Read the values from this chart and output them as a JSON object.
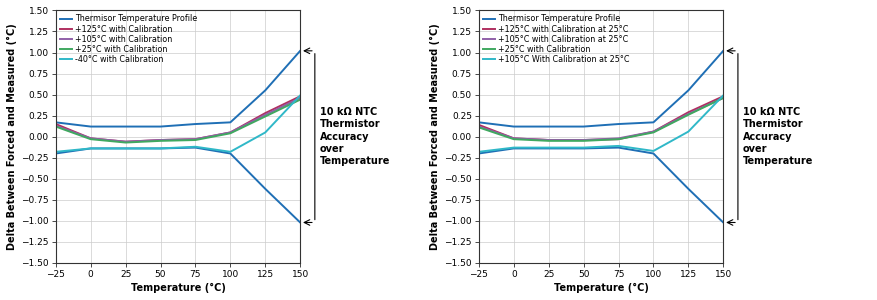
{
  "left_chart": {
    "xlabel": "Temperature (°C)",
    "ylabel": "Delta Between Forced and Measured (°C)",
    "xlim": [
      -25,
      150
    ],
    "ylim": [
      -1.5,
      1.5
    ],
    "xticks": [
      -25,
      0,
      25,
      50,
      75,
      100,
      125,
      150
    ],
    "yticks": [
      -1.5,
      -1.25,
      -1.0,
      -0.75,
      -0.5,
      -0.25,
      0.0,
      0.25,
      0.5,
      0.75,
      1.0,
      1.25,
      1.5
    ],
    "annotation": "10 kΩ NTC\nThermistor\nAccuracy\nover\nTemperature",
    "series": [
      {
        "label": "Thermisor Temperature Profile",
        "color": "#1f6fb5",
        "x": [
          -25,
          0,
          25,
          50,
          75,
          100,
          125,
          150
        ],
        "y_upper": [
          0.17,
          0.12,
          0.12,
          0.12,
          0.15,
          0.17,
          0.55,
          1.02
        ],
        "y_lower": [
          -0.2,
          -0.14,
          -0.14,
          -0.14,
          -0.13,
          -0.2,
          -0.62,
          -1.02
        ]
      },
      {
        "label": "+125°C with Calibration",
        "color": "#b03060",
        "x": [
          -25,
          0,
          25,
          50,
          75,
          100,
          125,
          150
        ],
        "y": [
          0.15,
          -0.02,
          -0.06,
          -0.04,
          -0.03,
          0.05,
          0.28,
          0.48
        ]
      },
      {
        "label": "+105°C with Calibration",
        "color": "#9060a8",
        "x": [
          -25,
          0,
          25,
          50,
          75,
          100,
          125,
          150
        ],
        "y": [
          0.13,
          -0.02,
          -0.06,
          -0.04,
          -0.03,
          0.05,
          0.26,
          0.46
        ]
      },
      {
        "label": "+25°C with Calibration",
        "color": "#40a860",
        "x": [
          -25,
          0,
          25,
          50,
          75,
          100,
          125,
          150
        ],
        "y": [
          0.12,
          -0.03,
          -0.07,
          -0.05,
          -0.04,
          0.04,
          0.24,
          0.44
        ]
      },
      {
        "label": "-40°C with Calibration",
        "color": "#30b8c8",
        "x": [
          -25,
          0,
          25,
          50,
          75,
          100,
          125,
          150
        ],
        "y": [
          -0.18,
          -0.14,
          -0.14,
          -0.14,
          -0.12,
          -0.18,
          0.05,
          0.49
        ]
      }
    ]
  },
  "right_chart": {
    "xlabel": "Temperature (°C)",
    "ylabel": "Delta Between Forced and Measured (°C)",
    "xlim": [
      -25,
      150
    ],
    "ylim": [
      -1.5,
      1.5
    ],
    "xticks": [
      -25,
      0,
      25,
      50,
      75,
      100,
      125,
      150
    ],
    "yticks": [
      -1.5,
      -1.25,
      -1.0,
      -0.75,
      -0.5,
      -0.25,
      0.0,
      0.25,
      0.5,
      0.75,
      1.0,
      1.25,
      1.5
    ],
    "annotation": "10 kΩ NTC\nThermistor\nAccuracy\nover\nTemperature",
    "series": [
      {
        "label": "Thermisor Temperature Profile",
        "color": "#1f6fb5",
        "x": [
          -25,
          0,
          25,
          50,
          75,
          100,
          125,
          150
        ],
        "y_upper": [
          0.17,
          0.12,
          0.12,
          0.12,
          0.15,
          0.17,
          0.55,
          1.02
        ],
        "y_lower": [
          -0.2,
          -0.14,
          -0.14,
          -0.14,
          -0.13,
          -0.2,
          -0.62,
          -1.02
        ]
      },
      {
        "label": "+125°C with Calibration at 25°C",
        "color": "#b03060",
        "x": [
          -25,
          0,
          25,
          50,
          75,
          100,
          125,
          150
        ],
        "y": [
          0.14,
          -0.02,
          -0.04,
          -0.04,
          -0.03,
          0.06,
          0.29,
          0.48
        ]
      },
      {
        "label": "+105°C with Calibration at 25°C",
        "color": "#9060a8",
        "x": [
          -25,
          0,
          25,
          50,
          75,
          100,
          125,
          150
        ],
        "y": [
          0.12,
          -0.02,
          -0.04,
          -0.04,
          -0.02,
          0.06,
          0.27,
          0.46
        ]
      },
      {
        "label": "+25°C with Calibration",
        "color": "#40a860",
        "x": [
          -25,
          0,
          25,
          50,
          75,
          100,
          125,
          150
        ],
        "y": [
          0.11,
          -0.03,
          -0.05,
          -0.05,
          -0.03,
          0.05,
          0.26,
          0.46
        ]
      },
      {
        "label": "+105°C With Calibration at 25°C",
        "color": "#30b8c8",
        "x": [
          -25,
          0,
          25,
          50,
          75,
          100,
          125,
          150
        ],
        "y": [
          -0.18,
          -0.13,
          -0.13,
          -0.13,
          -0.11,
          -0.17,
          0.06,
          0.49
        ]
      }
    ]
  },
  "bg_color": "#ffffff",
  "grid_color": "#cccccc",
  "label_fontsize": 7,
  "tick_fontsize": 6.5,
  "legend_fontsize": 5.8,
  "line_width": 1.4,
  "annotation_fontsize": 7
}
